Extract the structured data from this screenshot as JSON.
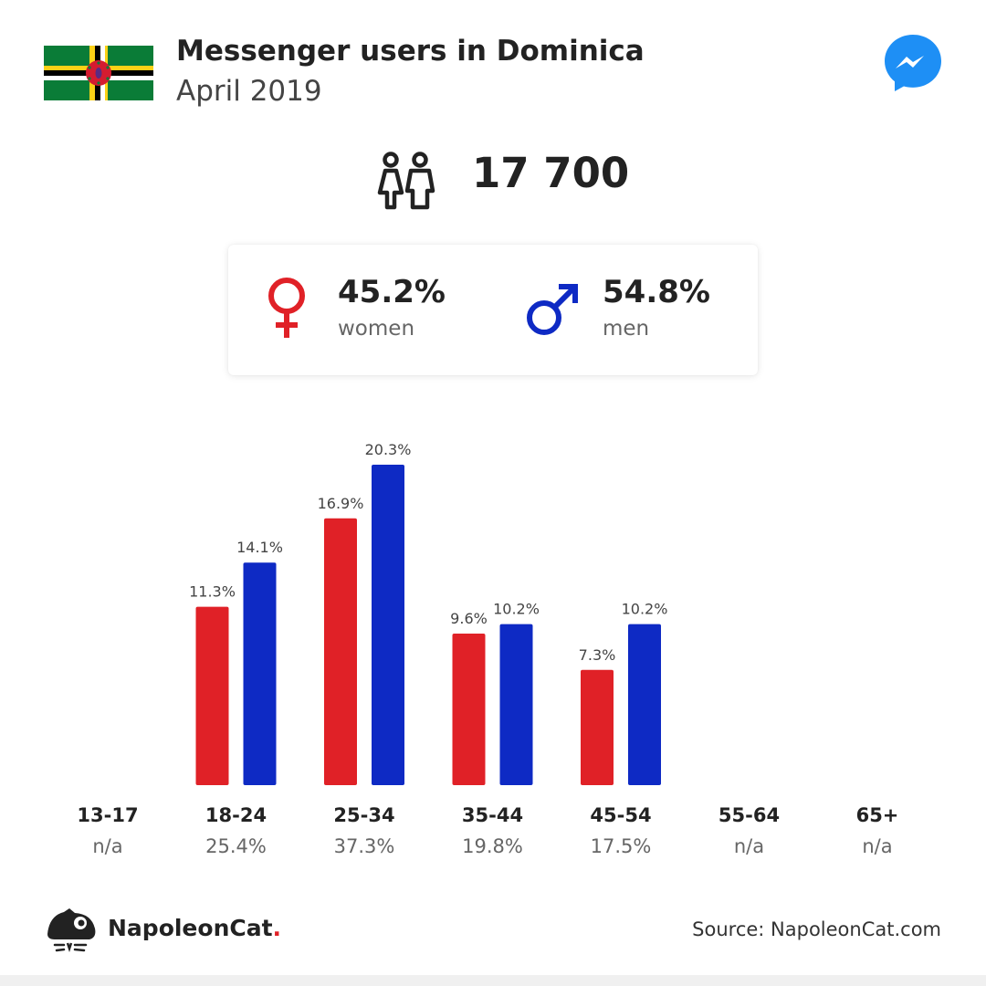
{
  "header": {
    "title": "Messenger users in Dominica",
    "subtitle": "April 2019",
    "flag_icon": "dominica-flag-icon",
    "app_icon": "messenger-icon"
  },
  "total": {
    "value": "17 700",
    "icon": "people-icon"
  },
  "gender": {
    "women": {
      "pct": "45.2%",
      "label": "women",
      "color": "#e02127"
    },
    "men": {
      "pct": "54.8%",
      "label": "men",
      "color": "#0e2ac4"
    }
  },
  "colors": {
    "women": "#e02127",
    "men": "#0e2ac4",
    "text": "#222222",
    "muted": "#666666"
  },
  "chart_data": {
    "type": "bar",
    "categories": [
      "13-17",
      "18-24",
      "25-34",
      "35-44",
      "45-54",
      "55-64",
      "65+"
    ],
    "category_totals": [
      "n/a",
      "25.4%",
      "37.3%",
      "19.8%",
      "17.5%",
      "n/a",
      "n/a"
    ],
    "series": [
      {
        "color": "#e02127",
        "values": [
          null,
          11.3,
          16.9,
          9.6,
          7.3,
          null,
          null
        ],
        "labels": [
          "",
          "11.3%",
          "16.9%",
          "9.6%",
          "7.3%",
          "",
          ""
        ]
      },
      {
        "color": "#0e2ac4",
        "values": [
          null,
          14.1,
          20.3,
          10.2,
          10.2,
          null,
          null
        ],
        "labels": [
          "",
          "14.1%",
          "20.3%",
          "10.2%",
          "10.2%",
          "",
          ""
        ]
      }
    ],
    "ylim": [
      0,
      20.3
    ],
    "grid": false
  },
  "footer": {
    "brand": "NapoleonCat",
    "brand_dot": ".",
    "source": "Source: NapoleonCat.com"
  }
}
